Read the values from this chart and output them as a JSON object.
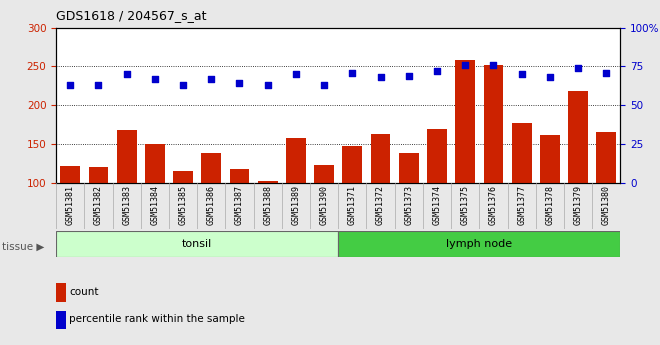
{
  "title": "GDS1618 / 204567_s_at",
  "categories": [
    "GSM51381",
    "GSM51382",
    "GSM51383",
    "GSM51384",
    "GSM51385",
    "GSM51386",
    "GSM51387",
    "GSM51388",
    "GSM51389",
    "GSM51390",
    "GSM51371",
    "GSM51372",
    "GSM51373",
    "GSM51374",
    "GSM51375",
    "GSM51376",
    "GSM51377",
    "GSM51378",
    "GSM51379",
    "GSM51380"
  ],
  "count_values": [
    122,
    120,
    168,
    150,
    115,
    138,
    118,
    103,
    158,
    123,
    148,
    163,
    138,
    170,
    258,
    252,
    177,
    162,
    218,
    165
  ],
  "percentile_values": [
    63,
    63,
    70,
    67,
    63,
    67,
    64,
    63,
    70,
    63,
    71,
    68,
    69,
    72,
    76,
    76,
    70,
    68,
    74,
    71
  ],
  "bar_color": "#cc2200",
  "scatter_color": "#0000cc",
  "left_ylim": [
    100,
    300
  ],
  "left_yticks": [
    100,
    150,
    200,
    250,
    300
  ],
  "right_ylim": [
    0,
    100
  ],
  "right_yticks": [
    0,
    25,
    50,
    75,
    100
  ],
  "tonsil_count": 10,
  "lymph_count": 10,
  "tonsil_color": "#ccffcc",
  "lymph_color": "#44cc44",
  "tissue_label": "tissue",
  "tonsil_label": "tonsil",
  "lymph_label": "lymph node",
  "legend_count_label": "count",
  "legend_pct_label": "percentile rank within the sample",
  "bg_color": "#e8e8e8",
  "plot_bg_color": "#ffffff",
  "tick_bg_color": "#cccccc"
}
